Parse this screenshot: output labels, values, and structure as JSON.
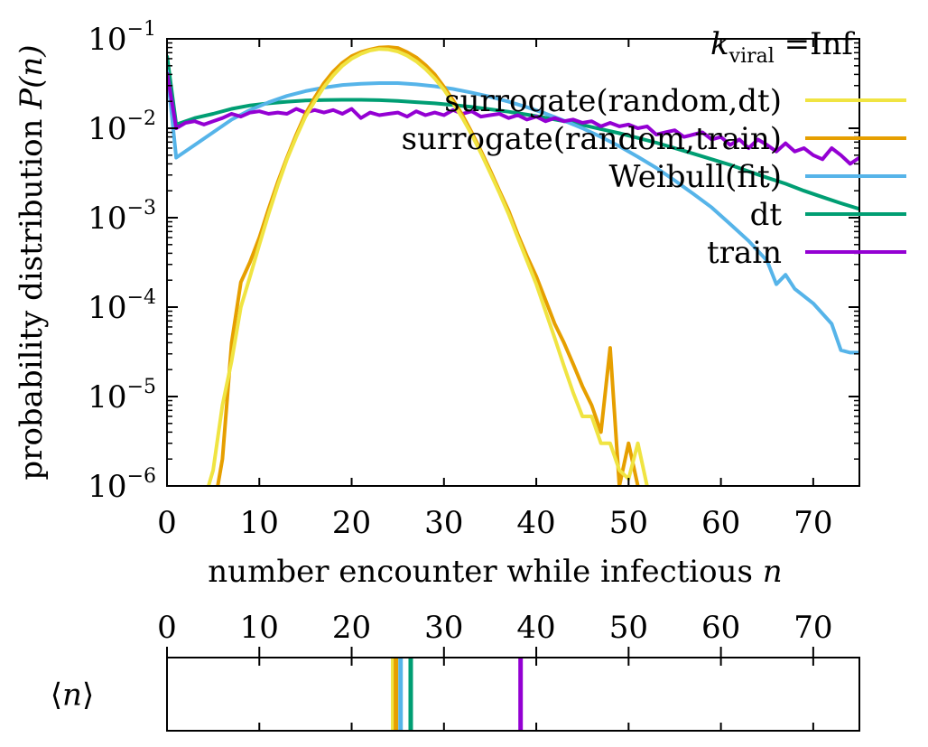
{
  "chart_data": [
    {
      "type": "line",
      "name": "distribution",
      "title": "",
      "annotation": {
        "k": "k",
        "sub": "viral",
        "rest": " =Inf"
      },
      "xlabel": {
        "text": "number encounter while infectious ",
        "var": "n"
      },
      "ylabel": {
        "text": "probability distribution ",
        "var": "P(n)"
      },
      "xlim": [
        0,
        75
      ],
      "ylim": [
        1e-06,
        0.1
      ],
      "yscale": "log",
      "xticks": [
        0,
        10,
        20,
        30,
        40,
        50,
        60,
        70
      ],
      "xtick_labels": [
        "0",
        "10",
        "20",
        "30",
        "40",
        "50",
        "60",
        "70"
      ],
      "yticks": [
        {
          "value": 0.1,
          "base": "10",
          "exp": "−1"
        },
        {
          "value": 0.01,
          "base": "10",
          "exp": "−2"
        },
        {
          "value": 0.001,
          "base": "10",
          "exp": "−3"
        },
        {
          "value": 0.0001,
          "base": "10",
          "exp": "−4"
        },
        {
          "value": 1e-05,
          "base": "10",
          "exp": "−5"
        },
        {
          "value": 1e-06,
          "base": "10",
          "exp": "−6"
        }
      ],
      "grid": false,
      "legend_position": "top-right",
      "series": [
        {
          "name": "surrogate(random,dt)",
          "color": "#f0e442",
          "x": [
            4.5,
            5,
            6,
            7,
            8,
            9,
            10,
            11,
            12,
            13,
            14,
            15,
            16,
            17,
            18,
            19,
            20,
            21,
            22,
            23,
            24,
            25,
            26,
            27,
            28,
            29,
            30,
            31,
            32,
            33,
            34,
            35,
            36,
            37,
            38,
            39,
            40,
            41,
            42,
            43,
            44,
            45,
            46,
            47,
            48,
            49,
            50,
            51,
            52
          ],
          "y": [
            1e-06,
            1.5e-06,
            8e-06,
            2.5e-05,
            0.0001,
            0.00022,
            0.0005,
            0.0011,
            0.0023,
            0.0045,
            0.008,
            0.0135,
            0.02,
            0.029,
            0.039,
            0.05,
            0.06,
            0.068,
            0.074,
            0.077,
            0.076,
            0.072,
            0.065,
            0.056,
            0.046,
            0.036,
            0.027,
            0.019,
            0.013,
            0.0085,
            0.0053,
            0.0032,
            0.0019,
            0.0011,
            0.0006,
            0.00033,
            0.00018,
            9e-05,
            4.5e-05,
            2.2e-05,
            1.1e-05,
            6e-06,
            6e-06,
            3e-06,
            3e-06,
            1.5e-06,
            1.2e-06,
            3e-06,
            1e-06
          ]
        },
        {
          "name": "surrogate(random,train)",
          "color": "#e69f00",
          "x": [
            5.5,
            6,
            7,
            8,
            9,
            10,
            11,
            12,
            13,
            14,
            15,
            16,
            17,
            18,
            19,
            20,
            21,
            22,
            23,
            24,
            25,
            26,
            27,
            28,
            29,
            30,
            31,
            32,
            33,
            34,
            35,
            36,
            37,
            38,
            39,
            40,
            41,
            42,
            43,
            44,
            45,
            46,
            47,
            48,
            49,
            50,
            51
          ],
          "y": [
            1e-06,
            2e-06,
            4e-05,
            0.00019,
            0.00032,
            0.0006,
            0.00125,
            0.0025,
            0.0047,
            0.0085,
            0.0145,
            0.022,
            0.032,
            0.043,
            0.054,
            0.064,
            0.071,
            0.076,
            0.08,
            0.081,
            0.079,
            0.071,
            0.062,
            0.051,
            0.04,
            0.029,
            0.0205,
            0.014,
            0.009,
            0.0056,
            0.0034,
            0.002,
            0.0012,
            0.00065,
            0.00037,
            0.00022,
            0.00012,
            6.5e-05,
            4e-05,
            2.3e-05,
            1.3e-05,
            8e-06,
            4e-06,
            3.5e-05,
            1e-06,
            3e-06,
            1e-06
          ]
        },
        {
          "name": "Weibull(fit)",
          "color": "#56b4e9",
          "x": [
            0,
            1,
            3,
            5,
            7,
            9,
            11,
            13,
            15,
            17,
            19,
            21,
            23,
            25,
            27,
            29,
            31,
            33,
            35,
            37,
            39,
            41,
            43,
            45,
            47,
            49,
            51,
            53,
            55,
            57,
            59,
            61,
            63,
            65,
            66,
            67,
            68,
            70,
            72,
            73,
            74,
            75
          ],
          "y": [
            0.045,
            0.0047,
            0.0065,
            0.009,
            0.0125,
            0.016,
            0.0195,
            0.023,
            0.026,
            0.0285,
            0.0305,
            0.0315,
            0.032,
            0.032,
            0.031,
            0.0295,
            0.0275,
            0.025,
            0.0225,
            0.0198,
            0.0172,
            0.0146,
            0.0122,
            0.01,
            0.008,
            0.0063,
            0.0048,
            0.0036,
            0.0026,
            0.00185,
            0.0013,
            0.00085,
            0.00055,
            0.00033,
            0.00018,
            0.00023,
            0.00016,
            0.00011,
            6.5e-05,
            3.3e-05,
            3.1e-05,
            3.1e-05
          ]
        },
        {
          "name": "dt",
          "color": "#009e73",
          "x": [
            0,
            1,
            3,
            5,
            7,
            9,
            11,
            13,
            15,
            17,
            19,
            21,
            23,
            25,
            27,
            29,
            31,
            33,
            35,
            37,
            39,
            41,
            43,
            45,
            47,
            49,
            51,
            53,
            55,
            57,
            59,
            61,
            63,
            65,
            67,
            69,
            71,
            73,
            75
          ],
          "y": [
            0.065,
            0.011,
            0.013,
            0.0145,
            0.0165,
            0.018,
            0.019,
            0.0198,
            0.0204,
            0.0207,
            0.0208,
            0.0208,
            0.0206,
            0.0202,
            0.0196,
            0.019,
            0.0182,
            0.0173,
            0.0163,
            0.0153,
            0.0142,
            0.0131,
            0.012,
            0.0109,
            0.0098,
            0.0088,
            0.0078,
            0.0069,
            0.006,
            0.0052,
            0.0045,
            0.0039,
            0.0033,
            0.0028,
            0.0024,
            0.002,
            0.0017,
            0.00145,
            0.00125
          ]
        },
        {
          "name": "train",
          "color": "#9400d3",
          "x": [
            0,
            1,
            2,
            3,
            4,
            5,
            6,
            7,
            8,
            9,
            10,
            11,
            12,
            13,
            14,
            15,
            16,
            17,
            18,
            19,
            20,
            21,
            22,
            23,
            24,
            25,
            26,
            27,
            28,
            29,
            30,
            31,
            32,
            33,
            34,
            35,
            36,
            37,
            38,
            39,
            40,
            41,
            42,
            43,
            44,
            45,
            46,
            47,
            48,
            49,
            50,
            51,
            52,
            53,
            54,
            55,
            56,
            57,
            58,
            59,
            60,
            61,
            62,
            63,
            64,
            65,
            66,
            67,
            68,
            69,
            70,
            71,
            72,
            73,
            74,
            75
          ],
          "y": [
            0.042,
            0.01,
            0.0115,
            0.012,
            0.011,
            0.012,
            0.013,
            0.0145,
            0.0135,
            0.015,
            0.0155,
            0.0145,
            0.015,
            0.0145,
            0.0165,
            0.015,
            0.016,
            0.015,
            0.016,
            0.0145,
            0.0165,
            0.013,
            0.015,
            0.014,
            0.0145,
            0.015,
            0.0135,
            0.0155,
            0.014,
            0.015,
            0.014,
            0.016,
            0.0145,
            0.0155,
            0.0135,
            0.014,
            0.0145,
            0.013,
            0.014,
            0.0125,
            0.0135,
            0.012,
            0.013,
            0.012,
            0.0125,
            0.0115,
            0.012,
            0.0105,
            0.0115,
            0.0105,
            0.011,
            0.01,
            0.0105,
            0.0085,
            0.009,
            0.0095,
            0.008,
            0.0085,
            0.009,
            0.0075,
            0.008,
            0.0065,
            0.0075,
            0.006,
            0.0075,
            0.0065,
            0.0055,
            0.0068,
            0.0055,
            0.006,
            0.005,
            0.0045,
            0.006,
            0.005,
            0.004,
            0.0047
          ]
        }
      ]
    },
    {
      "type": "bar",
      "name": "mean-encounters",
      "ylabel": {
        "open": "⟨",
        "var": "n",
        "close": "⟩"
      },
      "xlim": [
        0,
        75
      ],
      "xticks": [
        0,
        10,
        20,
        30,
        40,
        50,
        60,
        70
      ],
      "xtick_labels": [
        "0",
        "10",
        "20",
        "30",
        "40",
        "50",
        "60",
        "70"
      ],
      "xaxis_position": "top",
      "means": [
        {
          "series": "surrogate(random,dt)",
          "value": 24.5,
          "color": "#f0e442"
        },
        {
          "series": "surrogate(random,train)",
          "value": 24.8,
          "color": "#e69f00"
        },
        {
          "series": "Weibull(fit)",
          "value": 25.3,
          "color": "#56b4e9"
        },
        {
          "series": "dt",
          "value": 26.4,
          "color": "#009e73"
        },
        {
          "series": "train",
          "value": 38.3,
          "color": "#9400d3"
        }
      ]
    }
  ]
}
